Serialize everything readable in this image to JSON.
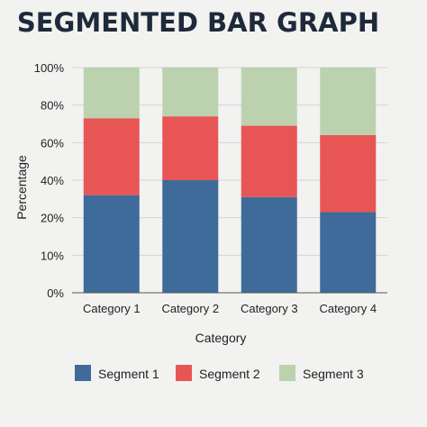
{
  "chart_data": {
    "type": "bar",
    "stacked": true,
    "title": "SEGMENTED BAR GRAPH",
    "xlabel": "Category",
    "ylabel": "Percentage",
    "categories": [
      "Category 1",
      "Category 2",
      "Category 3",
      "Category 4"
    ],
    "ylim": [
      0,
      100
    ],
    "yticks": [
      "0%",
      "10%",
      "20%",
      "40%",
      "60%",
      "80%",
      "100%"
    ],
    "grid": true,
    "legend_position": "bottom",
    "series": [
      {
        "name": "Segment 1",
        "values": [
          32,
          40,
          31,
          23
        ],
        "color": "#3e6b9a"
      },
      {
        "name": "Segment 2",
        "values": [
          41,
          34,
          38,
          41
        ],
        "color": "#e85555"
      },
      {
        "name": "Segment 3",
        "values": [
          27,
          26,
          31,
          36
        ],
        "color": "#bcd2ae"
      }
    ]
  }
}
